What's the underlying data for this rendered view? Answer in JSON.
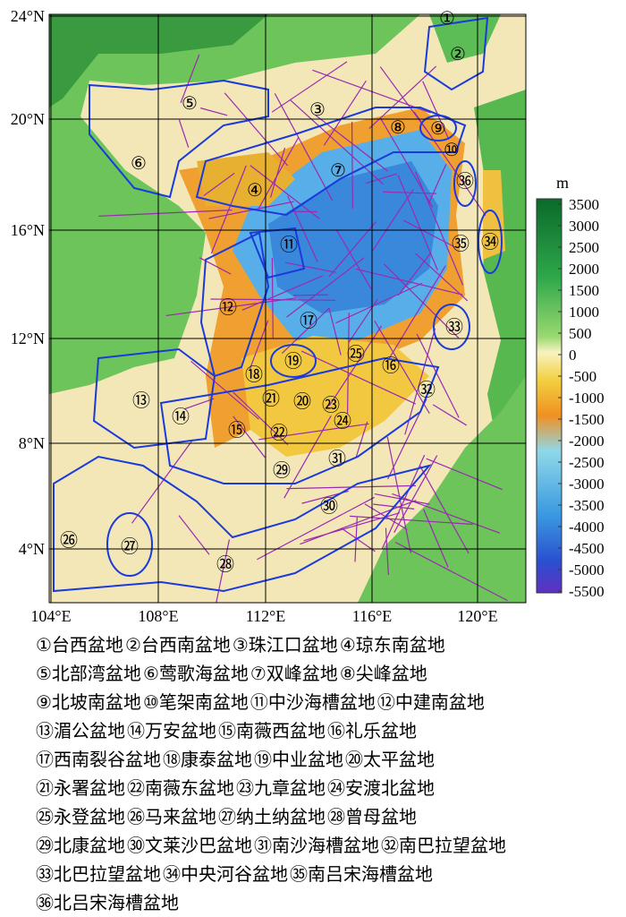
{
  "map": {
    "lat_labels": [
      "24°N",
      "20°N",
      "16°N",
      "12°N",
      "8°N",
      "4°N"
    ],
    "lon_labels": [
      "104°E",
      "108°E",
      "112°E",
      "116°E",
      "120°E"
    ],
    "basins": [
      "①",
      "②",
      "③",
      "④",
      "⑤",
      "⑥",
      "⑦",
      "⑧",
      "⑨",
      "⑩",
      "⑪",
      "⑫",
      "⑬",
      "⑭",
      "⑮",
      "⑯",
      "⑰",
      "⑱",
      "⑲",
      "⑳",
      "㉑",
      "㉒",
      "㉓",
      "㉔",
      "㉕",
      "㉖",
      "㉗",
      "㉘",
      "㉙",
      "㉚",
      "㉛",
      "㉜",
      "㉝",
      "㉞",
      "㉟",
      "㊱"
    ]
  },
  "colorbar": {
    "unit": "m",
    "ticks": [
      3500,
      3000,
      2500,
      2000,
      1500,
      1000,
      500,
      0,
      -500,
      -1000,
      -1500,
      -2000,
      -2500,
      -3000,
      -3500,
      -4000,
      -4500,
      -5000,
      -5500
    ]
  },
  "legend": [
    [
      "①台西盆地",
      "②台西南盆地",
      "③珠江口盆地",
      "④琼东南盆地"
    ],
    [
      "⑤北部湾盆地",
      "⑥莺歌海盆地",
      "⑦双峰盆地",
      "⑧尖峰盆地"
    ],
    [
      "⑨北坡南盆地",
      "⑩笔架南盆地",
      "⑪中沙海槽盆地",
      "⑫中建南盆地"
    ],
    [
      "⑬湄公盆地",
      "⑭万安盆地",
      "⑮南薇西盆地",
      "⑯礼乐盆地"
    ],
    [
      "⑰西南裂谷盆地",
      "⑱康泰盆地",
      "⑲中业盆地",
      "⑳太平盆地"
    ],
    [
      "㉑永署盆地",
      "㉒南薇东盆地",
      "㉓九章盆地",
      "㉔安渡北盆地"
    ],
    [
      "㉕永登盆地",
      "㉖马来盆地",
      "㉗纳土纳盆地",
      "㉘曾母盆地"
    ],
    [
      "㉙北康盆地",
      "㉚文莱沙巴盆地",
      "㉛南沙海槽盆地",
      "㉜南巴拉望盆地"
    ],
    [
      "㉝北巴拉望盆地",
      "㉞中央河谷盆地",
      "㉟南吕宋海槽盆地"
    ],
    [
      "㊱北吕宋海槽盆地"
    ]
  ]
}
